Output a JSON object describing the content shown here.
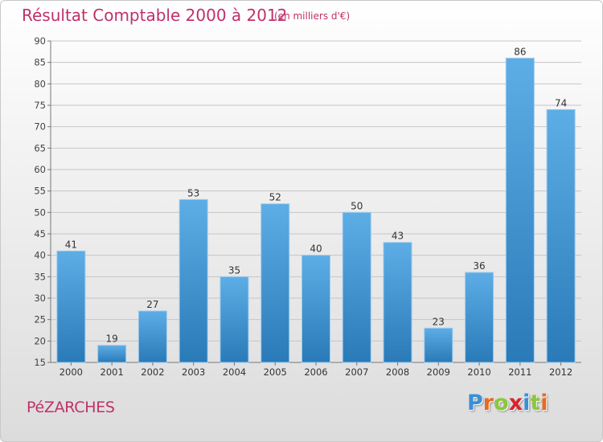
{
  "chart_data": {
    "type": "bar",
    "title": "Résultat Comptable 2000 à 2012",
    "subtitle": "(en milliers d'€)",
    "categories": [
      "2000",
      "2001",
      "2002",
      "2003",
      "2004",
      "2005",
      "2006",
      "2007",
      "2008",
      "2009",
      "2010",
      "2011",
      "2012"
    ],
    "values": [
      41,
      19,
      27,
      53,
      35,
      52,
      40,
      50,
      43,
      23,
      36,
      86,
      74
    ],
    "yticks": [
      15,
      20,
      25,
      30,
      35,
      40,
      45,
      50,
      55,
      60,
      65,
      70,
      75,
      80,
      85,
      90
    ],
    "ylim": [
      15,
      90
    ],
    "grid": true,
    "xlabel": "",
    "ylabel": ""
  },
  "footer": {
    "town": "PéZARCHES",
    "logo_letters": [
      "P",
      "r",
      "o",
      "x",
      "i",
      "t",
      "i"
    ]
  },
  "colors": {
    "title": "#c0306a",
    "bar_top": "#5dade6",
    "bar_bottom": "#2a7ab8",
    "logo": [
      "#3a8fd9",
      "#e8691e",
      "#8cc63e",
      "#d9232d",
      "#3a8fd9",
      "#8cc63e",
      "#e8691e"
    ]
  }
}
